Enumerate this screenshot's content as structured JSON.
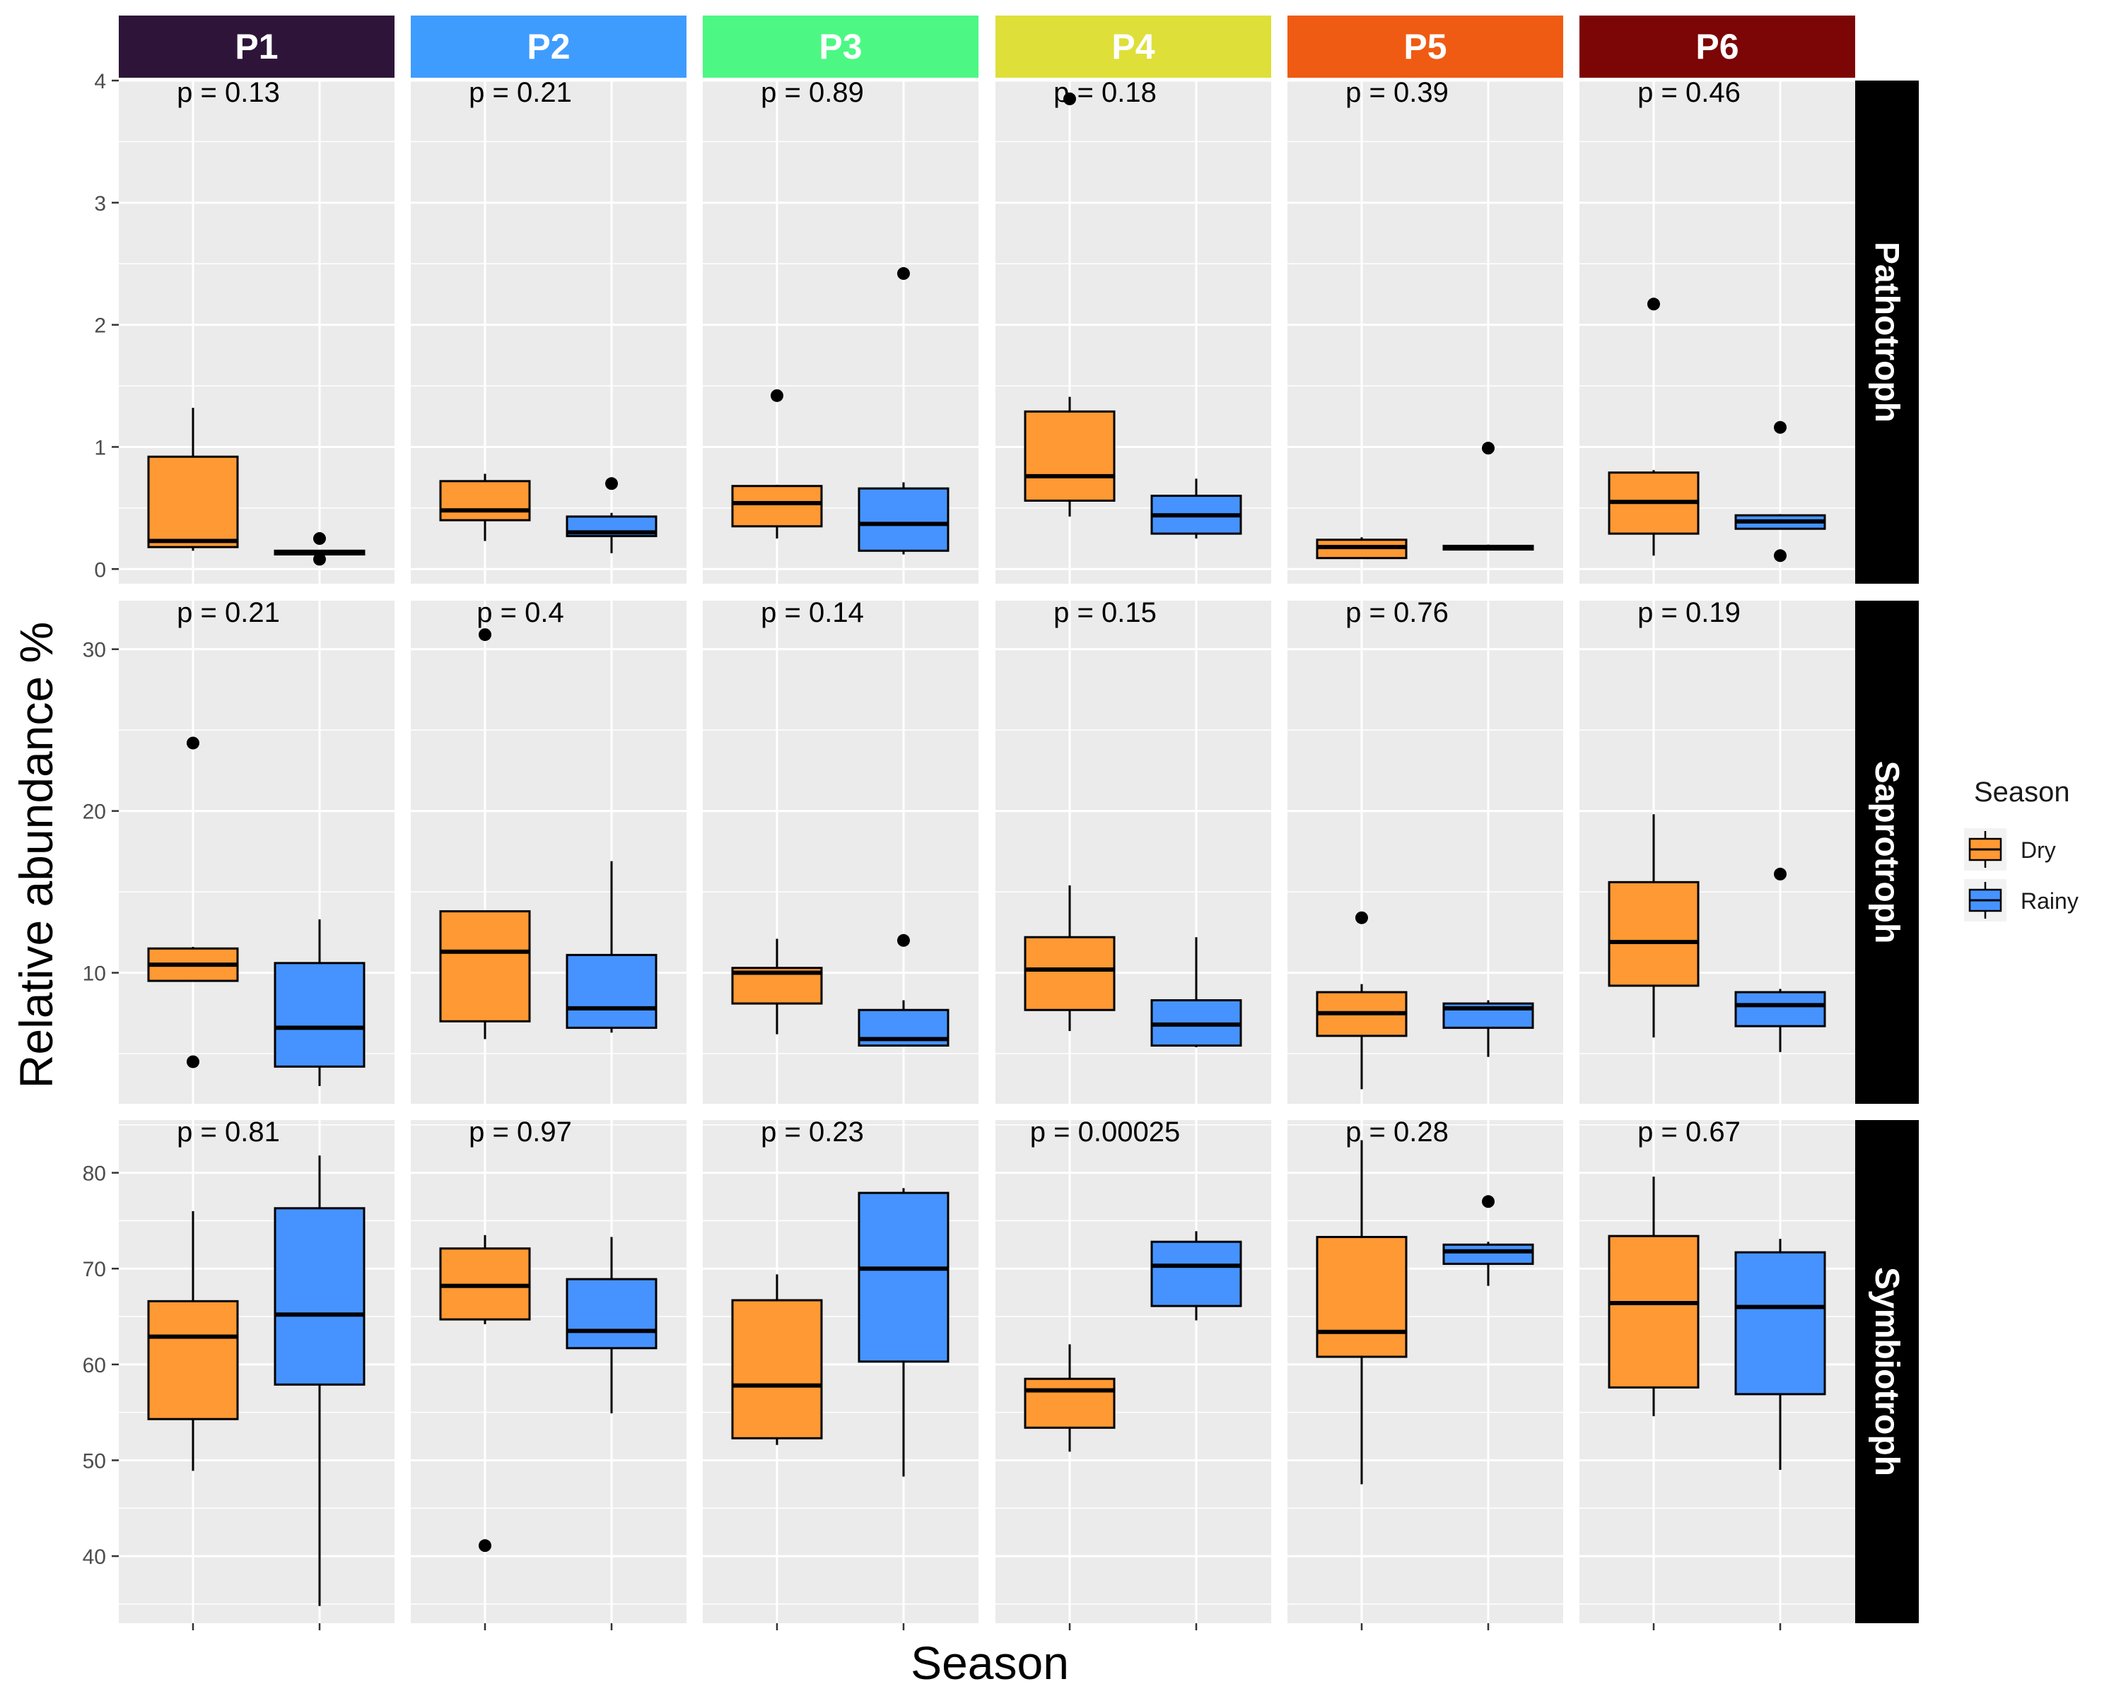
{
  "chart_data": {
    "type": "box",
    "xlabel": "Season",
    "ylabel": "Relative abundance %",
    "legend": {
      "title": "Season",
      "placement": "right",
      "entries": [
        {
          "label": "Dry",
          "color": "#FF9933"
        },
        {
          "label": "Rainy",
          "color": "#4693FF"
        }
      ]
    },
    "columns": [
      {
        "label": "P1",
        "color": "#2E1439"
      },
      {
        "label": "P2",
        "color": "#3F9CFF"
      },
      {
        "label": "P3",
        "color": "#4CF883"
      },
      {
        "label": "P4",
        "color": "#DEDF39"
      },
      {
        "label": "P5",
        "color": "#EF5B12"
      },
      {
        "label": "P6",
        "color": "#7C0505"
      }
    ],
    "rows": [
      {
        "label": "Pathotroph",
        "ylim": [
          -0.12,
          4.0
        ],
        "ticks": [
          0,
          1,
          2,
          3,
          4
        ],
        "panels": [
          {
            "p": "p = 0.13",
            "dry": {
              "lw": 0.15,
              "q1": 0.18,
              "med": 0.23,
              "q3": 0.92,
              "uw": 1.32,
              "out": []
            },
            "rainy": {
              "lw": 0.12,
              "q1": 0.12,
              "med": 0.14,
              "q3": 0.15,
              "uw": 0.15,
              "out": [
                0.25,
                0.08
              ]
            }
          },
          {
            "p": "p = 0.21",
            "dry": {
              "lw": 0.23,
              "q1": 0.4,
              "med": 0.48,
              "q3": 0.72,
              "uw": 0.78,
              "out": []
            },
            "rainy": {
              "lw": 0.13,
              "q1": 0.27,
              "med": 0.3,
              "q3": 0.43,
              "uw": 0.46,
              "out": [
                0.7
              ]
            }
          },
          {
            "p": "p = 0.89",
            "dry": {
              "lw": 0.25,
              "q1": 0.35,
              "med": 0.54,
              "q3": 0.68,
              "uw": 0.69,
              "out": [
                1.42
              ]
            },
            "rainy": {
              "lw": 0.12,
              "q1": 0.15,
              "med": 0.37,
              "q3": 0.66,
              "uw": 0.71,
              "out": [
                2.42
              ]
            }
          },
          {
            "p": "p = 0.18",
            "dry": {
              "lw": 0.43,
              "q1": 0.56,
              "med": 0.76,
              "q3": 1.29,
              "uw": 1.41,
              "out": [
                3.85
              ]
            },
            "rainy": {
              "lw": 0.25,
              "q1": 0.29,
              "med": 0.44,
              "q3": 0.6,
              "uw": 0.74,
              "out": []
            }
          },
          {
            "p": "p = 0.39",
            "dry": {
              "lw": 0.09,
              "q1": 0.09,
              "med": 0.18,
              "q3": 0.24,
              "uw": 0.26,
              "out": []
            },
            "rainy": {
              "lw": 0.16,
              "q1": 0.16,
              "med": 0.17,
              "q3": 0.19,
              "uw": 0.2,
              "out": [
                0.99
              ]
            }
          },
          {
            "p": "p = 0.46",
            "dry": {
              "lw": 0.11,
              "q1": 0.29,
              "med": 0.55,
              "q3": 0.79,
              "uw": 0.81,
              "out": [
                2.17
              ]
            },
            "rainy": {
              "lw": 0.33,
              "q1": 0.33,
              "med": 0.39,
              "q3": 0.44,
              "uw": 0.45,
              "out": [
                1.16,
                0.11
              ]
            }
          }
        ]
      },
      {
        "label": "Saprotroph",
        "ylim": [
          1.9,
          33.0
        ],
        "ticks": [
          10,
          20,
          30
        ],
        "panels": [
          {
            "p": "p = 0.21",
            "dry": {
              "lw": 9.5,
              "q1": 9.5,
              "med": 10.5,
              "q3": 11.5,
              "uw": 11.6,
              "out": [
                24.2,
                4.5
              ]
            },
            "rainy": {
              "lw": 3.0,
              "q1": 4.2,
              "med": 6.6,
              "q3": 10.6,
              "uw": 13.3,
              "out": []
            }
          },
          {
            "p": "p = 0.4",
            "dry": {
              "lw": 5.9,
              "q1": 7.0,
              "med": 11.3,
              "q3": 13.8,
              "uw": 13.8,
              "out": [
                30.9
              ]
            },
            "rainy": {
              "lw": 6.3,
              "q1": 6.6,
              "med": 7.8,
              "q3": 11.1,
              "uw": 16.9,
              "out": []
            }
          },
          {
            "p": "p = 0.14",
            "dry": {
              "lw": 6.2,
              "q1": 8.1,
              "med": 10.0,
              "q3": 10.3,
              "uw": 12.1,
              "out": []
            },
            "rainy": {
              "lw": 5.5,
              "q1": 5.5,
              "med": 5.9,
              "q3": 7.7,
              "uw": 8.3,
              "out": [
                12.0
              ]
            }
          },
          {
            "p": "p = 0.15",
            "dry": {
              "lw": 6.4,
              "q1": 7.7,
              "med": 10.2,
              "q3": 12.2,
              "uw": 15.4,
              "out": []
            },
            "rainy": {
              "lw": 5.4,
              "q1": 5.5,
              "med": 6.8,
              "q3": 8.3,
              "uw": 12.2,
              "out": []
            }
          },
          {
            "p": "p = 0.76",
            "dry": {
              "lw": 2.8,
              "q1": 6.1,
              "med": 7.5,
              "q3": 8.8,
              "uw": 9.3,
              "out": [
                13.4
              ]
            },
            "rainy": {
              "lw": 4.8,
              "q1": 6.6,
              "med": 7.8,
              "q3": 8.1,
              "uw": 8.3,
              "out": []
            }
          },
          {
            "p": "p = 0.19",
            "dry": {
              "lw": 6.0,
              "q1": 9.2,
              "med": 11.9,
              "q3": 15.6,
              "uw": 19.8,
              "out": []
            },
            "rainy": {
              "lw": 5.1,
              "q1": 6.7,
              "med": 8.0,
              "q3": 8.8,
              "uw": 9.0,
              "out": [
                16.1
              ]
            }
          }
        ]
      },
      {
        "label": "Symbiotroph",
        "ylim": [
          33.0,
          85.5
        ],
        "ticks": [
          40,
          50,
          60,
          70,
          80
        ],
        "panels": [
          {
            "p": "p = 0.81",
            "dry": {
              "lw": 48.9,
              "q1": 54.3,
              "med": 62.9,
              "q3": 66.6,
              "uw": 76.0,
              "out": []
            },
            "rainy": {
              "lw": 34.8,
              "q1": 57.9,
              "med": 65.2,
              "q3": 76.3,
              "uw": 81.8,
              "out": []
            }
          },
          {
            "p": "p = 0.97",
            "dry": {
              "lw": 64.2,
              "q1": 64.7,
              "med": 68.2,
              "q3": 72.1,
              "uw": 73.5,
              "out": [
                41.1
              ]
            },
            "rainy": {
              "lw": 54.9,
              "q1": 61.7,
              "med": 63.5,
              "q3": 68.9,
              "uw": 73.3,
              "out": []
            }
          },
          {
            "p": "p = 0.23",
            "dry": {
              "lw": 51.6,
              "q1": 52.3,
              "med": 57.8,
              "q3": 66.7,
              "uw": 69.4,
              "out": []
            },
            "rainy": {
              "lw": 48.3,
              "q1": 60.3,
              "med": 70.0,
              "q3": 77.9,
              "uw": 78.4,
              "out": []
            }
          },
          {
            "p": "p = 0.00025",
            "dry": {
              "lw": 50.9,
              "q1": 53.4,
              "med": 57.3,
              "q3": 58.5,
              "uw": 62.1,
              "out": []
            },
            "rainy": {
              "lw": 64.6,
              "q1": 66.1,
              "med": 70.3,
              "q3": 72.8,
              "uw": 73.9,
              "out": []
            }
          },
          {
            "p": "p = 0.28",
            "dry": {
              "lw": 47.5,
              "q1": 60.8,
              "med": 63.4,
              "q3": 73.3,
              "uw": 83.4,
              "out": []
            },
            "rainy": {
              "lw": 68.2,
              "q1": 70.5,
              "med": 71.8,
              "q3": 72.5,
              "uw": 72.8,
              "out": [
                77.0
              ]
            }
          },
          {
            "p": "p = 0.67",
            "dry": {
              "lw": 54.6,
              "q1": 57.6,
              "med": 66.4,
              "q3": 73.4,
              "uw": 79.6,
              "out": []
            },
            "rainy": {
              "lw": 49.0,
              "q1": 56.9,
              "med": 66.0,
              "q3": 71.7,
              "uw": 73.1,
              "out": []
            }
          }
        ]
      }
    ]
  }
}
